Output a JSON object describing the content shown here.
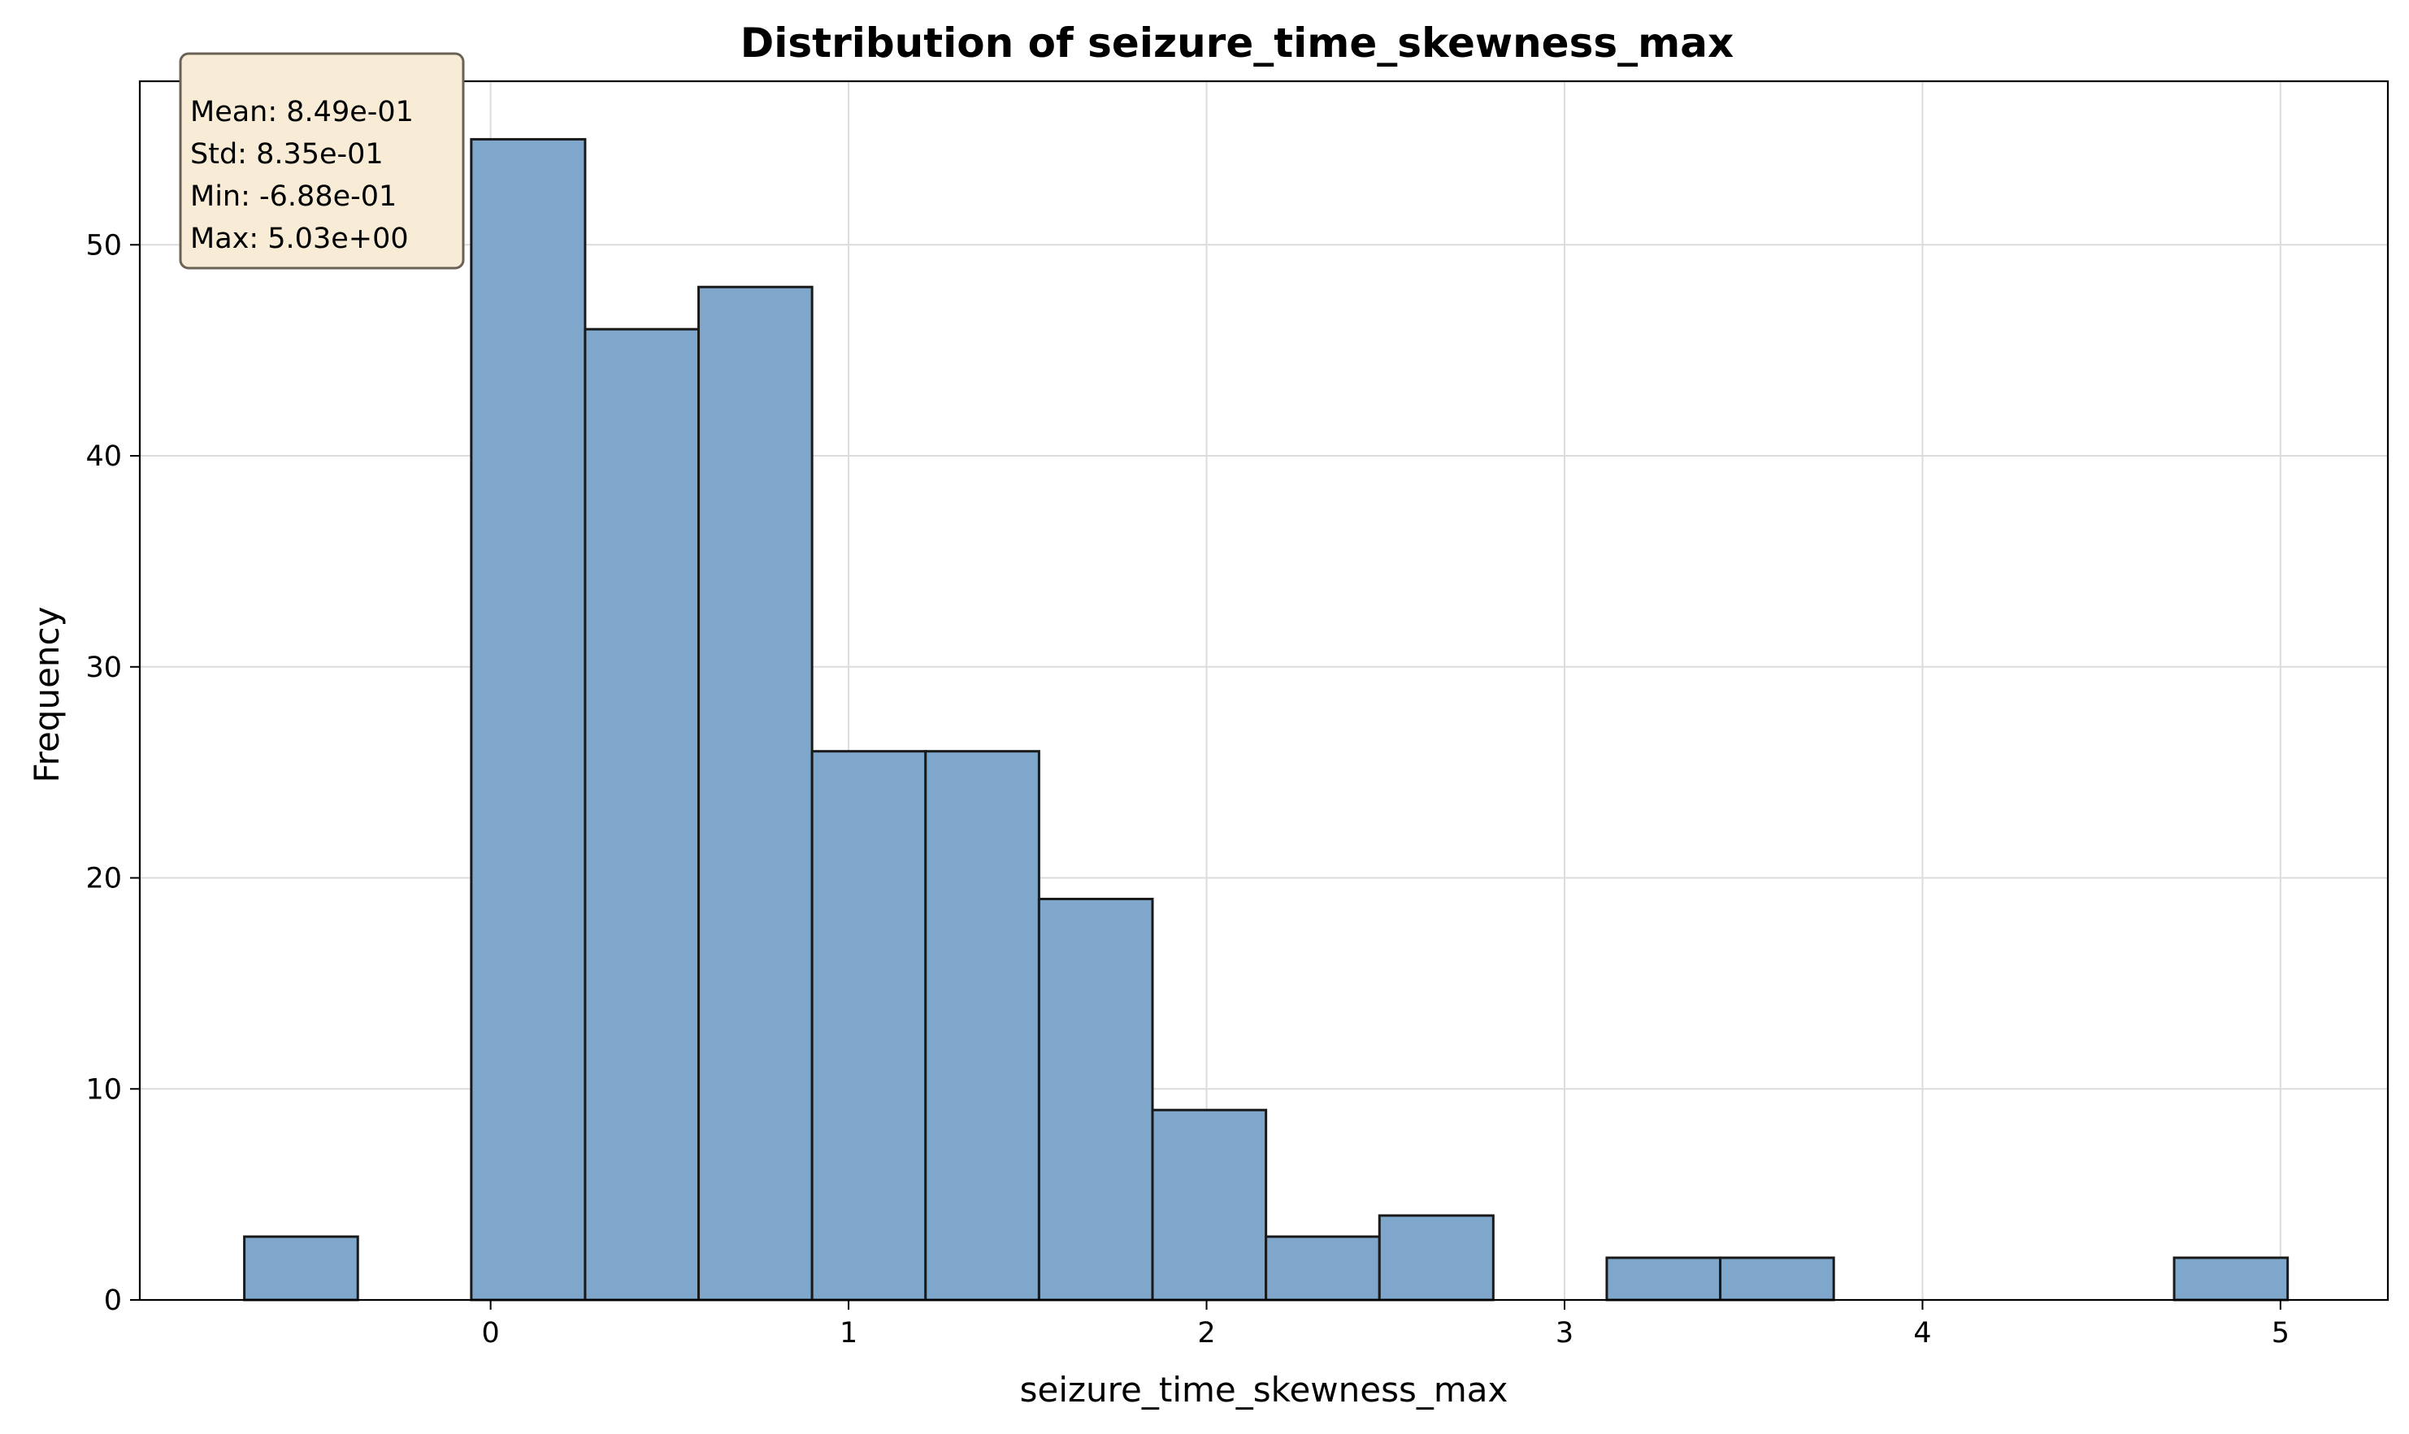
{
  "chart_data": {
    "type": "bar",
    "title": "Distribution of seizure_time_skewness_max",
    "xlabel": "seizure_time_skewness_max",
    "ylabel": "Frequency",
    "xlim": [
      -0.98,
      5.3
    ],
    "ylim": [
      0,
      57.75
    ],
    "x_ticks": [
      0,
      1,
      2,
      3,
      4,
      5
    ],
    "y_ticks": [
      0,
      10,
      20,
      30,
      40,
      50
    ],
    "grid": true,
    "bin_edges": [
      -0.688,
      -0.371,
      -0.054,
      0.264,
      0.581,
      0.898,
      1.215,
      1.532,
      1.849,
      2.166,
      2.483,
      2.801,
      3.118,
      3.435,
      3.752,
      4.069,
      4.386,
      4.703,
      5.02
    ],
    "counts": [
      3,
      0,
      55,
      46,
      48,
      26,
      26,
      19,
      9,
      3,
      4,
      0,
      2,
      2,
      0,
      0,
      0,
      2
    ],
    "bar_color": "#7ea7cb",
    "edge_color": "#1a1a1a",
    "stats_box": {
      "lines": [
        "Mean: 8.49e-01",
        "Std: 8.35e-01",
        "Min: -6.88e-01",
        "Max: 5.03e+00"
      ],
      "position": "top-left",
      "background": "#f8ecd6"
    }
  }
}
